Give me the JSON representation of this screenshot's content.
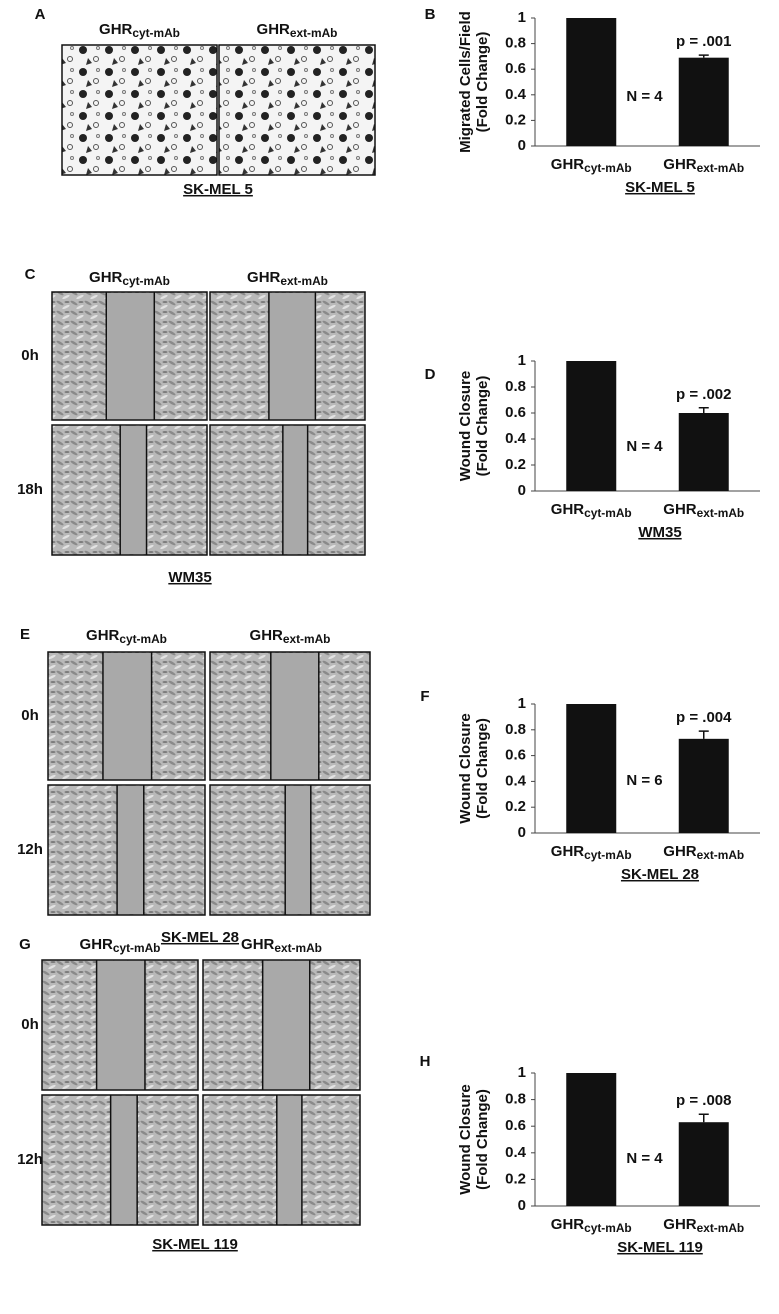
{
  "image_panels": [
    {
      "panel": "A",
      "columns": [
        "GHR",
        "GHR"
      ],
      "column_subscripts": [
        "cyt-mAb",
        "ext-mAb"
      ],
      "rows": [],
      "cell_line": "SK-MEL 5"
    },
    {
      "panel": "C",
      "columns": [
        "GHR",
        "GHR"
      ],
      "column_subscripts": [
        "cyt-mAb",
        "ext-mAb"
      ],
      "rows": [
        "0h",
        "18h"
      ],
      "cell_line": "WM35"
    },
    {
      "panel": "E",
      "columns": [
        "GHR",
        "GHR"
      ],
      "column_subscripts": [
        "cyt-mAb",
        "ext-mAb"
      ],
      "rows": [
        "0h",
        "12h"
      ],
      "cell_line": "SK-MEL 28"
    },
    {
      "panel": "G",
      "columns": [
        "GHR",
        "GHR"
      ],
      "column_subscripts": [
        "cyt-mAb",
        "ext-mAb"
      ],
      "rows": [
        "0h",
        "12h"
      ],
      "cell_line": "SK-MEL 119"
    }
  ],
  "chart_data": [
    {
      "type": "bar",
      "panel": "B",
      "title": "SK-MEL 5",
      "ylabel": [
        "Migrated Cells/Field",
        "(Fold Change)"
      ],
      "categories": [
        "GHR",
        "GHR"
      ],
      "category_subscripts": [
        "cyt-mAb",
        "ext-mAb"
      ],
      "values": [
        1,
        0.69
      ],
      "errors": [
        null,
        0.02
      ],
      "color": "#111111",
      "ylim": [
        0,
        1
      ],
      "yticks": [
        0,
        0.2,
        0.4,
        0.6,
        0.8,
        1
      ],
      "p_label": "p = .001",
      "n_label": "N = 4"
    },
    {
      "type": "bar",
      "panel": "D",
      "title": "WM35",
      "ylabel": [
        "Wound Closure",
        "(Fold Change)"
      ],
      "categories": [
        "GHR",
        "GHR"
      ],
      "category_subscripts": [
        "cyt-mAb",
        "ext-mAb"
      ],
      "values": [
        1,
        0.6
      ],
      "errors": [
        null,
        0.04
      ],
      "color": "#111111",
      "ylim": [
        0,
        1
      ],
      "yticks": [
        0,
        0.2,
        0.4,
        0.6,
        0.8,
        1
      ],
      "p_label": "p = .002",
      "n_label": "N = 4"
    },
    {
      "type": "bar",
      "panel": "F",
      "title": "SK-MEL 28",
      "ylabel": [
        "Wound Closure",
        "(Fold Change)"
      ],
      "categories": [
        "GHR",
        "GHR"
      ],
      "category_subscripts": [
        "cyt-mAb",
        "ext-mAb"
      ],
      "values": [
        1,
        0.73
      ],
      "errors": [
        null,
        0.06
      ],
      "color": "#111111",
      "ylim": [
        0,
        1
      ],
      "yticks": [
        0,
        0.2,
        0.4,
        0.6,
        0.8,
        1
      ],
      "p_label": "p = .004",
      "n_label": "N = 6"
    },
    {
      "type": "bar",
      "panel": "H",
      "title": "SK-MEL 119",
      "ylabel": [
        "Wound Closure",
        "(Fold Change)"
      ],
      "categories": [
        "GHR",
        "GHR"
      ],
      "category_subscripts": [
        "cyt-mAb",
        "ext-mAb"
      ],
      "values": [
        1,
        0.63
      ],
      "errors": [
        null,
        0.06
      ],
      "color": "#111111",
      "ylim": [
        0,
        1
      ],
      "yticks": [
        0,
        0.2,
        0.4,
        0.6,
        0.8,
        1
      ],
      "p_label": "p = .008",
      "n_label": "N = 4"
    }
  ]
}
